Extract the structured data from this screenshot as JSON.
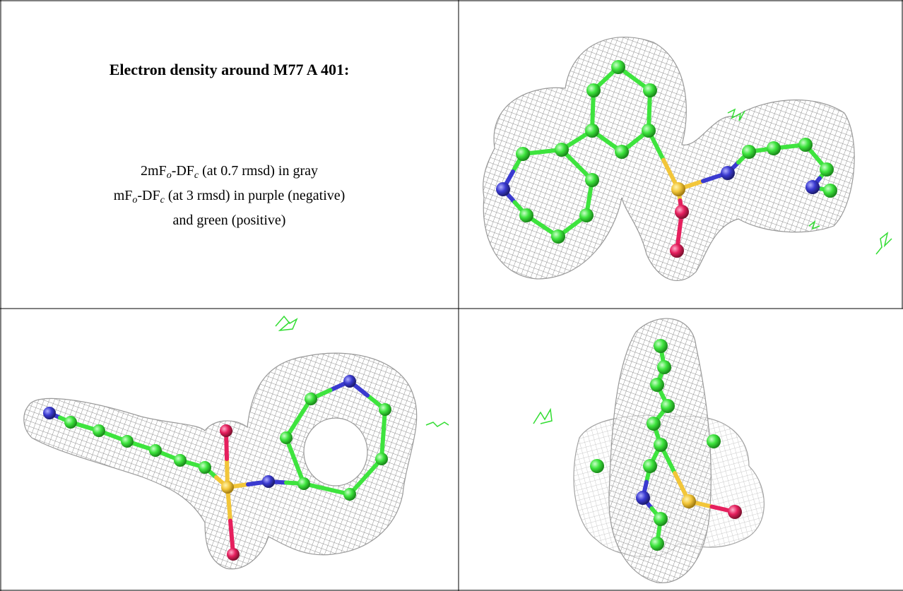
{
  "header": {
    "title": "Electron density around M77 A 401:"
  },
  "legend": {
    "lines": [
      [
        "2mF",
        "o",
        "-DF",
        "c",
        " (at 0.7 rmsd) in gray"
      ],
      [
        "mF",
        "o",
        "-DF",
        "c",
        " (at 3 rmsd) in purple (negative)"
      ],
      [
        "and green (positive)"
      ]
    ]
  }
}
